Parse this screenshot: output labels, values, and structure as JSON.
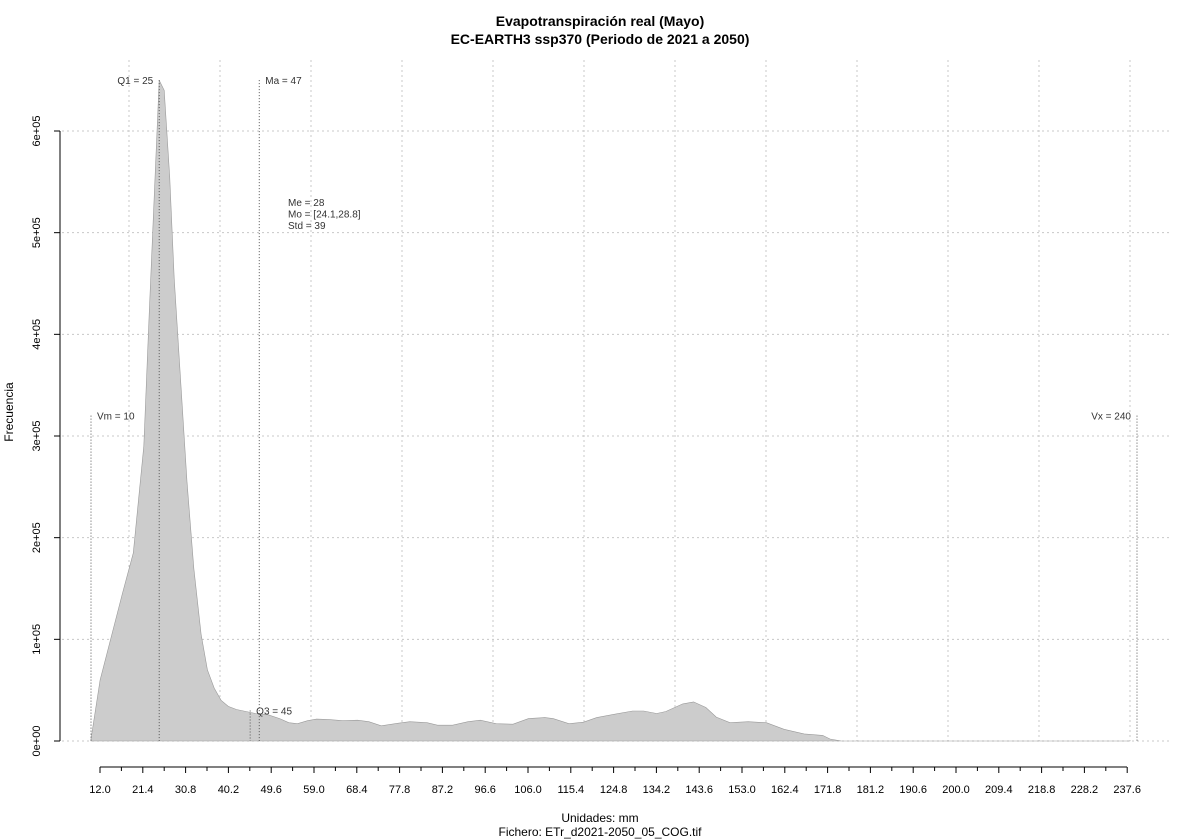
{
  "chart_data": {
    "type": "area",
    "title": "Evapotranspiración real (Mayo)",
    "subtitle": "EC-EARTH3 ssp370 (Periodo de 2021 a 2050)",
    "xlabel": "Unidades: mm",
    "file_label": "Fichero: ETr_d2021-2050_05_COG.tif",
    "ylabel": "Frecuencia",
    "xlim": [
      7.5,
      240
    ],
    "ylim": [
      0,
      650000
    ],
    "x_ticks": [
      "12.0",
      "21.4",
      "30.8",
      "40.2",
      "49.6",
      "59.0",
      "68.4",
      "77.8",
      "87.2",
      "96.6",
      "106.0",
      "115.4",
      "124.8",
      "134.2",
      "143.6",
      "153.0",
      "162.4",
      "171.8",
      "181.2",
      "190.6",
      "200.0",
      "209.4",
      "218.8",
      "228.2",
      "237.6"
    ],
    "y_ticks": [
      {
        "value": 0,
        "label": "0e+00"
      },
      {
        "value": 100000,
        "label": "1e+05"
      },
      {
        "value": 200000,
        "label": "2e+05"
      },
      {
        "value": 300000,
        "label": "3e+05"
      },
      {
        "value": 400000,
        "label": "4e+05"
      },
      {
        "value": 500000,
        "label": "5e+05"
      },
      {
        "value": 600000,
        "label": "6e+05"
      }
    ],
    "grid": true,
    "fill_color": "#cccccc",
    "series": [
      {
        "x": [
          10,
          12,
          14.6,
          16.9,
          19.3,
          21.6,
          22.8,
          25,
          26.1,
          27.3,
          28.3,
          29.7,
          31.1,
          32.6,
          34.2,
          35.6,
          37.1,
          38.6,
          40.2,
          42,
          44.1,
          46.2,
          48.8,
          51.5,
          53.5,
          55.4,
          57.6,
          59.6,
          62.4,
          65.4,
          68.6,
          71.1,
          73.8,
          77.6,
          80.1,
          83.9,
          86.2,
          89.5,
          92.9,
          95.6,
          99.1,
          102.8,
          106.2,
          109.8,
          111.6,
          115.1,
          118.3,
          121.2,
          125.3,
          129.1,
          131.5,
          134.4,
          136.4,
          140.1,
          142.5,
          145.2,
          147.5,
          150.5,
          154.5,
          158.5,
          162.4,
          166.8,
          170.9,
          172.5,
          175,
          190,
          210,
          230,
          238.5
        ],
        "y": [
          2000,
          60000,
          105000,
          145000,
          185000,
          290000,
          420000,
          650000,
          640000,
          555000,
          455000,
          355000,
          255000,
          170000,
          105000,
          70000,
          52000,
          40000,
          34000,
          31000,
          29000,
          27000,
          26000,
          22000,
          18000,
          17000,
          20000,
          21500,
          21000,
          20000,
          20500,
          19000,
          15000,
          17500,
          19000,
          18000,
          15500,
          15500,
          19000,
          20500,
          17000,
          16500,
          22000,
          23000,
          22000,
          17000,
          18500,
          23000,
          26500,
          29500,
          29500,
          27000,
          29000,
          36500,
          38500,
          33000,
          23500,
          18000,
          19000,
          18000,
          11500,
          7000,
          5500,
          2000,
          0,
          0,
          0,
          0,
          0
        ]
      }
    ],
    "vlines": [
      {
        "x": 10,
        "label": "Vm = 10",
        "label_side": "right",
        "top": 320000
      },
      {
        "x": 25,
        "label": "Q1 = 25",
        "label_side": "left",
        "top": 650000
      },
      {
        "x": 45,
        "label": "Q3 = 45",
        "label_side": "right",
        "top": 30000
      },
      {
        "x": 47,
        "label": "Ma = 47",
        "label_side": "right",
        "top": 650000
      },
      {
        "x": 240,
        "label": "Vx = 240",
        "label_side": "left",
        "top": 320000
      }
    ],
    "stats": [
      "Me = 28",
      "Mo = [24.1,28.8]",
      "Std = 39"
    ]
  }
}
